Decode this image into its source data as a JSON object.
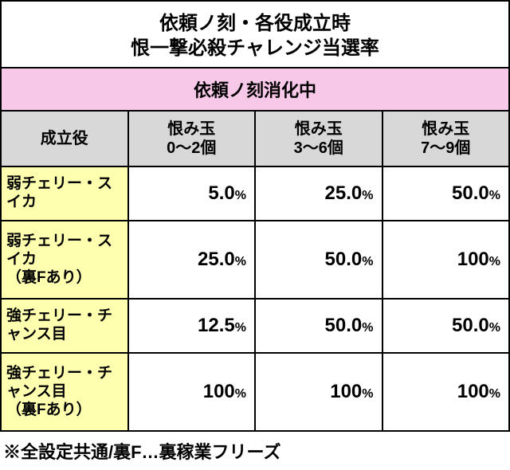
{
  "title": {
    "line1": "依頼ノ刻・各役成立時",
    "line2": "恨一撃必殺チャレンジ当選率"
  },
  "sectionHeader": "依頼ノ刻消化中",
  "columns": {
    "label": "成立役",
    "c1_l1": "恨み玉",
    "c1_l2": "0〜2個",
    "c2_l1": "恨み玉",
    "c2_l2": "3〜6個",
    "c3_l1": "恨み玉",
    "c3_l2": "7〜9個"
  },
  "rows": [
    {
      "label_l1": "弱チェリー・スイカ",
      "label_l2": "",
      "v1": "5.0",
      "v2": "25.0",
      "v3": "50.0"
    },
    {
      "label_l1": "弱チェリー・スイカ",
      "label_l2": "（裏Fあり）",
      "v1": "25.0",
      "v2": "50.0",
      "v3": "100"
    },
    {
      "label_l1": "強チェリー・チャンス目",
      "label_l2": "",
      "v1": "12.5",
      "v2": "50.0",
      "v3": "50.0"
    },
    {
      "label_l1": "強チェリー・チャンス目",
      "label_l2": "（裏Fあり）",
      "v1": "100",
      "v2": "100",
      "v3": "100"
    }
  ],
  "note": "※全設定共通/裏F…裏稼業フリーズ",
  "pct": "%"
}
